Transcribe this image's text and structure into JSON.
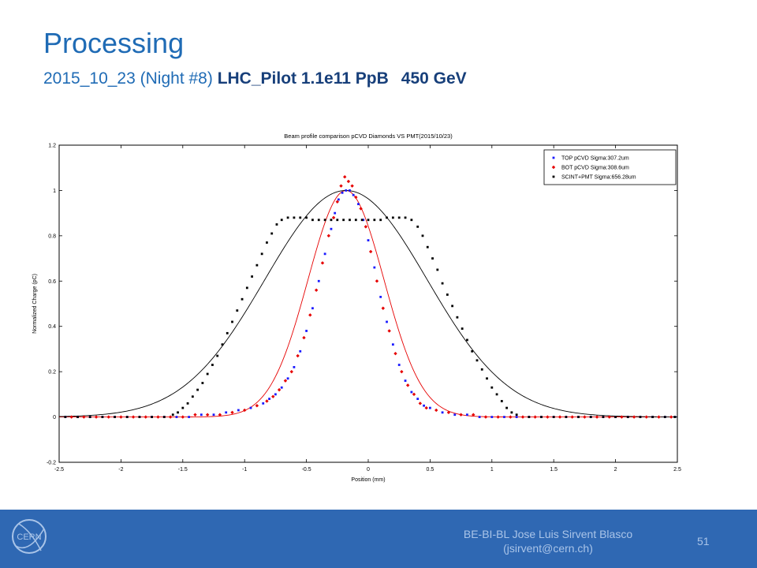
{
  "slide": {
    "title": "Processing",
    "subtitle_date": "2015_10_23",
    "subtitle_night": "(Night #8)",
    "subtitle_bold": "LHC_Pilot 1.1e11 PpB",
    "subtitle_energy": "450 GeV"
  },
  "footer": {
    "author_line1": "BE-BI-BL Jose Luis Sirvent Blasco",
    "author_line2": "(jsirvent@cern.ch)",
    "page": "51",
    "logo_text": "CERN",
    "background_color": "#2f68b3",
    "text_color": "#a9c4e8"
  },
  "chart_data": {
    "type": "scatter",
    "title": "Beam profile comparison pCVD Diamonds VS PMT(2015/10/23)",
    "xlabel": "Position (mm)",
    "ylabel": "Normalized Charge (pC)",
    "xlim": [
      -2.5,
      2.5
    ],
    "ylim": [
      -0.2,
      1.2
    ],
    "xticks": [
      "-2.5",
      "-2",
      "-1.5",
      "-1",
      "-0.5",
      "0",
      "0.5",
      "1",
      "1.5",
      "2",
      "2.5"
    ],
    "yticks": [
      "-0.2",
      "0",
      "0.2",
      "0.4",
      "0.6",
      "0.8",
      "1",
      "1.2"
    ],
    "grid": false,
    "legend_position": "top-right",
    "series": [
      {
        "name": "TOP pCVD Sigma:307.2um",
        "color": "#1a1aff",
        "marker": "square",
        "sigma_um": 307.2,
        "fit_center_mm": -0.18,
        "fit_color": "#e60000",
        "points": [
          [
            -2.45,
            0.0
          ],
          [
            -2.35,
            0.0
          ],
          [
            -2.25,
            0.0
          ],
          [
            -2.15,
            0.0
          ],
          [
            -2.05,
            0.0
          ],
          [
            -1.95,
            0.0
          ],
          [
            -1.85,
            0.0
          ],
          [
            -1.75,
            0.0
          ],
          [
            -1.65,
            0.0
          ],
          [
            -1.55,
            0.0
          ],
          [
            -1.45,
            0.0
          ],
          [
            -1.35,
            0.01
          ],
          [
            -1.25,
            0.01
          ],
          [
            -1.15,
            0.02
          ],
          [
            -1.05,
            0.03
          ],
          [
            -0.95,
            0.04
          ],
          [
            -0.85,
            0.06
          ],
          [
            -0.8,
            0.08
          ],
          [
            -0.75,
            0.1
          ],
          [
            -0.7,
            0.13
          ],
          [
            -0.65,
            0.17
          ],
          [
            -0.6,
            0.22
          ],
          [
            -0.55,
            0.29
          ],
          [
            -0.5,
            0.38
          ],
          [
            -0.45,
            0.48
          ],
          [
            -0.4,
            0.6
          ],
          [
            -0.35,
            0.72
          ],
          [
            -0.3,
            0.83
          ],
          [
            -0.27,
            0.9
          ],
          [
            -0.24,
            0.96
          ],
          [
            -0.21,
            0.99
          ],
          [
            -0.18,
            1.0
          ],
          [
            -0.15,
            1.0
          ],
          [
            -0.12,
            0.98
          ],
          [
            -0.08,
            0.94
          ],
          [
            -0.04,
            0.87
          ],
          [
            0.0,
            0.78
          ],
          [
            0.05,
            0.66
          ],
          [
            0.1,
            0.53
          ],
          [
            0.15,
            0.42
          ],
          [
            0.2,
            0.32
          ],
          [
            0.25,
            0.23
          ],
          [
            0.3,
            0.16
          ],
          [
            0.35,
            0.11
          ],
          [
            0.4,
            0.08
          ],
          [
            0.45,
            0.05
          ],
          [
            0.5,
            0.04
          ],
          [
            0.6,
            0.02
          ],
          [
            0.7,
            0.01
          ],
          [
            0.8,
            0.01
          ],
          [
            0.9,
            0.0
          ],
          [
            1.0,
            0.0
          ],
          [
            1.1,
            0.0
          ],
          [
            1.2,
            0.0
          ],
          [
            1.3,
            0.0
          ],
          [
            1.4,
            0.0
          ],
          [
            1.5,
            0.0
          ],
          [
            1.6,
            0.0
          ],
          [
            1.7,
            0.0
          ],
          [
            1.8,
            0.0
          ],
          [
            1.9,
            0.0
          ],
          [
            2.0,
            0.0
          ],
          [
            2.1,
            0.0
          ],
          [
            2.2,
            0.0
          ],
          [
            2.3,
            0.0
          ],
          [
            2.4,
            0.0
          ],
          [
            2.48,
            0.0
          ]
        ]
      },
      {
        "name": "BOT pCVD Sigma:308.6um",
        "color": "#e60000",
        "marker": "diamond",
        "sigma_um": 308.6,
        "points": [
          [
            -2.4,
            0.0
          ],
          [
            -2.3,
            0.0
          ],
          [
            -2.2,
            0.0
          ],
          [
            -2.1,
            0.0
          ],
          [
            -2.0,
            0.0
          ],
          [
            -1.9,
            0.0
          ],
          [
            -1.8,
            0.0
          ],
          [
            -1.7,
            0.0
          ],
          [
            -1.6,
            0.0
          ],
          [
            -1.5,
            0.0
          ],
          [
            -1.4,
            0.01
          ],
          [
            -1.3,
            0.01
          ],
          [
            -1.2,
            0.01
          ],
          [
            -1.1,
            0.02
          ],
          [
            -1.0,
            0.03
          ],
          [
            -0.9,
            0.05
          ],
          [
            -0.82,
            0.07
          ],
          [
            -0.77,
            0.09
          ],
          [
            -0.72,
            0.12
          ],
          [
            -0.67,
            0.16
          ],
          [
            -0.62,
            0.2
          ],
          [
            -0.57,
            0.27
          ],
          [
            -0.52,
            0.35
          ],
          [
            -0.47,
            0.45
          ],
          [
            -0.42,
            0.56
          ],
          [
            -0.37,
            0.68
          ],
          [
            -0.32,
            0.8
          ],
          [
            -0.28,
            0.88
          ],
          [
            -0.25,
            0.95
          ],
          [
            -0.22,
            1.02
          ],
          [
            -0.19,
            1.06
          ],
          [
            -0.16,
            1.04
          ],
          [
            -0.13,
            1.02
          ],
          [
            -0.1,
            0.97
          ],
          [
            -0.06,
            0.92
          ],
          [
            -0.02,
            0.84
          ],
          [
            0.02,
            0.73
          ],
          [
            0.07,
            0.6
          ],
          [
            0.12,
            0.48
          ],
          [
            0.17,
            0.38
          ],
          [
            0.22,
            0.28
          ],
          [
            0.27,
            0.2
          ],
          [
            0.32,
            0.14
          ],
          [
            0.37,
            0.1
          ],
          [
            0.42,
            0.06
          ],
          [
            0.47,
            0.04
          ],
          [
            0.55,
            0.03
          ],
          [
            0.65,
            0.02
          ],
          [
            0.75,
            0.01
          ],
          [
            0.85,
            0.01
          ],
          [
            0.95,
            0.0
          ],
          [
            1.05,
            0.0
          ],
          [
            1.15,
            0.0
          ],
          [
            1.25,
            0.0
          ],
          [
            1.35,
            0.0
          ],
          [
            1.45,
            0.0
          ],
          [
            1.55,
            0.0
          ],
          [
            1.65,
            0.0
          ],
          [
            1.75,
            0.0
          ],
          [
            1.85,
            0.0
          ],
          [
            1.95,
            0.0
          ],
          [
            2.05,
            0.0
          ],
          [
            2.15,
            0.0
          ],
          [
            2.25,
            0.0
          ],
          [
            2.35,
            0.0
          ],
          [
            2.45,
            0.0
          ]
        ]
      },
      {
        "name": "SCINT+PMT Sigma:656.28um",
        "color": "#000000",
        "marker": "square",
        "sigma_um": 656.28,
        "fit_center_mm": -0.18,
        "fit_color": "#000000",
        "points": [
          [
            -2.45,
            0.0
          ],
          [
            -2.35,
            0.0
          ],
          [
            -2.25,
            0.0
          ],
          [
            -2.15,
            0.0
          ],
          [
            -2.05,
            0.0
          ],
          [
            -1.95,
            0.0
          ],
          [
            -1.85,
            0.0
          ],
          [
            -1.75,
            0.0
          ],
          [
            -1.65,
            0.0
          ],
          [
            -1.58,
            0.01
          ],
          [
            -1.54,
            0.02
          ],
          [
            -1.5,
            0.04
          ],
          [
            -1.46,
            0.06
          ],
          [
            -1.42,
            0.09
          ],
          [
            -1.38,
            0.12
          ],
          [
            -1.34,
            0.15
          ],
          [
            -1.3,
            0.19
          ],
          [
            -1.26,
            0.23
          ],
          [
            -1.22,
            0.27
          ],
          [
            -1.18,
            0.32
          ],
          [
            -1.14,
            0.37
          ],
          [
            -1.1,
            0.42
          ],
          [
            -1.06,
            0.47
          ],
          [
            -1.02,
            0.52
          ],
          [
            -0.98,
            0.57
          ],
          [
            -0.94,
            0.62
          ],
          [
            -0.9,
            0.67
          ],
          [
            -0.86,
            0.72
          ],
          [
            -0.82,
            0.77
          ],
          [
            -0.78,
            0.81
          ],
          [
            -0.74,
            0.85
          ],
          [
            -0.7,
            0.87
          ],
          [
            -0.65,
            0.88
          ],
          [
            -0.6,
            0.88
          ],
          [
            -0.55,
            0.88
          ],
          [
            -0.5,
            0.88
          ],
          [
            -0.45,
            0.87
          ],
          [
            -0.4,
            0.87
          ],
          [
            -0.35,
            0.87
          ],
          [
            -0.3,
            0.87
          ],
          [
            -0.25,
            0.87
          ],
          [
            -0.2,
            0.87
          ],
          [
            -0.15,
            0.87
          ],
          [
            -0.1,
            0.87
          ],
          [
            -0.05,
            0.87
          ],
          [
            0.0,
            0.87
          ],
          [
            0.05,
            0.87
          ],
          [
            0.1,
            0.87
          ],
          [
            0.15,
            0.88
          ],
          [
            0.2,
            0.88
          ],
          [
            0.25,
            0.88
          ],
          [
            0.3,
            0.88
          ],
          [
            0.35,
            0.87
          ],
          [
            0.4,
            0.84
          ],
          [
            0.44,
            0.8
          ],
          [
            0.48,
            0.75
          ],
          [
            0.52,
            0.7
          ],
          [
            0.56,
            0.65
          ],
          [
            0.6,
            0.59
          ],
          [
            0.64,
            0.54
          ],
          [
            0.68,
            0.49
          ],
          [
            0.72,
            0.44
          ],
          [
            0.76,
            0.39
          ],
          [
            0.8,
            0.34
          ],
          [
            0.84,
            0.29
          ],
          [
            0.88,
            0.25
          ],
          [
            0.92,
            0.21
          ],
          [
            0.96,
            0.17
          ],
          [
            1.0,
            0.13
          ],
          [
            1.04,
            0.1
          ],
          [
            1.08,
            0.07
          ],
          [
            1.12,
            0.04
          ],
          [
            1.16,
            0.02
          ],
          [
            1.2,
            0.01
          ],
          [
            1.3,
            0.0
          ],
          [
            1.4,
            0.0
          ],
          [
            1.5,
            0.0
          ],
          [
            1.6,
            0.0
          ],
          [
            1.7,
            0.0
          ],
          [
            1.8,
            0.0
          ],
          [
            1.9,
            0.0
          ],
          [
            2.0,
            0.0
          ],
          [
            2.1,
            0.0
          ],
          [
            2.2,
            0.0
          ],
          [
            2.3,
            0.0
          ],
          [
            2.4,
            0.0
          ],
          [
            2.48,
            0.0
          ]
        ]
      }
    ]
  }
}
